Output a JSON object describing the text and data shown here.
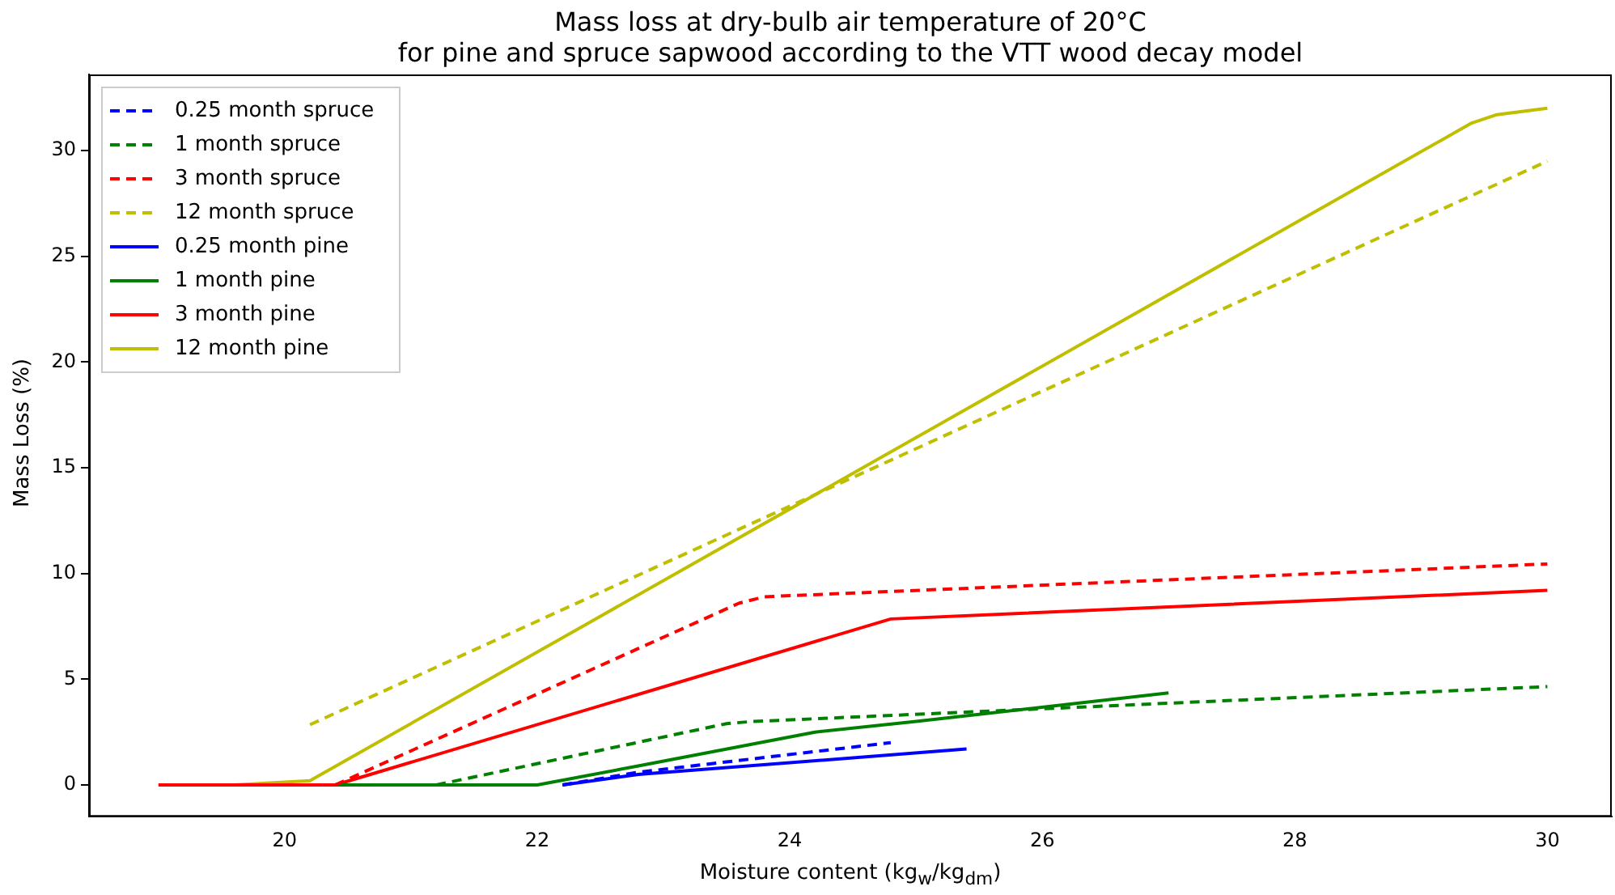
{
  "chart_data": {
    "type": "line",
    "title": "Mass loss at dry-bulb air temperature of 20°C",
    "subtitle": "for pine and spruce sapwood according to the VTT wood decay model",
    "xlabel": "Moisture content (kg$_{w}$/kg$_{dm}$)",
    "ylabel": "Mass Loss (%)",
    "xlim": [
      18.45,
      30.51
    ],
    "ylim": [
      -1.5,
      33.6
    ],
    "xticks": [
      20,
      22,
      24,
      26,
      28,
      30
    ],
    "yticks": [
      0,
      5,
      10,
      15,
      20,
      25,
      30
    ],
    "grid": false,
    "legend": "top left",
    "marker": "none",
    "series": [
      {
        "name": "0.25 month spruce",
        "color": "#0000ff",
        "line_style": "dashed",
        "x": [
          22.2,
          22.8,
          24.8
        ],
        "values": [
          0,
          0.6,
          2.0
        ]
      },
      {
        "name": "1 month spruce",
        "color": "#008000",
        "line_style": "dashed",
        "x": [
          21.2,
          23.5,
          23.7,
          30
        ],
        "values": [
          0,
          2.9,
          3.0,
          4.65
        ]
      },
      {
        "name": "3 month spruce",
        "color": "#ff0000",
        "line_style": "dashed",
        "x": [
          20.4,
          23.6,
          23.8,
          30
        ],
        "values": [
          0,
          8.6,
          8.9,
          10.45
        ]
      },
      {
        "name": "12 month spruce",
        "color": "#bfbf00",
        "line_style": "dashed",
        "x": [
          20.2,
          30
        ],
        "values": [
          2.85,
          29.5
        ]
      },
      {
        "name": "0.25 month pine",
        "color": "#0000ff",
        "line_style": "solid",
        "x": [
          22.2,
          22.8,
          25.4
        ],
        "values": [
          0,
          0.5,
          1.7
        ]
      },
      {
        "name": "1 month pine",
        "color": "#008000",
        "line_style": "solid",
        "x": [
          20.4,
          22,
          22.8,
          24.2,
          25,
          27
        ],
        "values": [
          0,
          0,
          0.9,
          2.5,
          3.0,
          4.35
        ]
      },
      {
        "name": "3 month pine",
        "color": "#ff0000",
        "line_style": "solid",
        "x": [
          19,
          20.4,
          24.8,
          30
        ],
        "values": [
          0,
          0,
          7.85,
          9.2
        ]
      },
      {
        "name": "12 month pine",
        "color": "#bfbf00",
        "line_style": "solid",
        "x": [
          19.6,
          20.2,
          29.4,
          29.6,
          30
        ],
        "values": [
          0,
          0.2,
          31.3,
          31.7,
          32
        ]
      }
    ]
  }
}
